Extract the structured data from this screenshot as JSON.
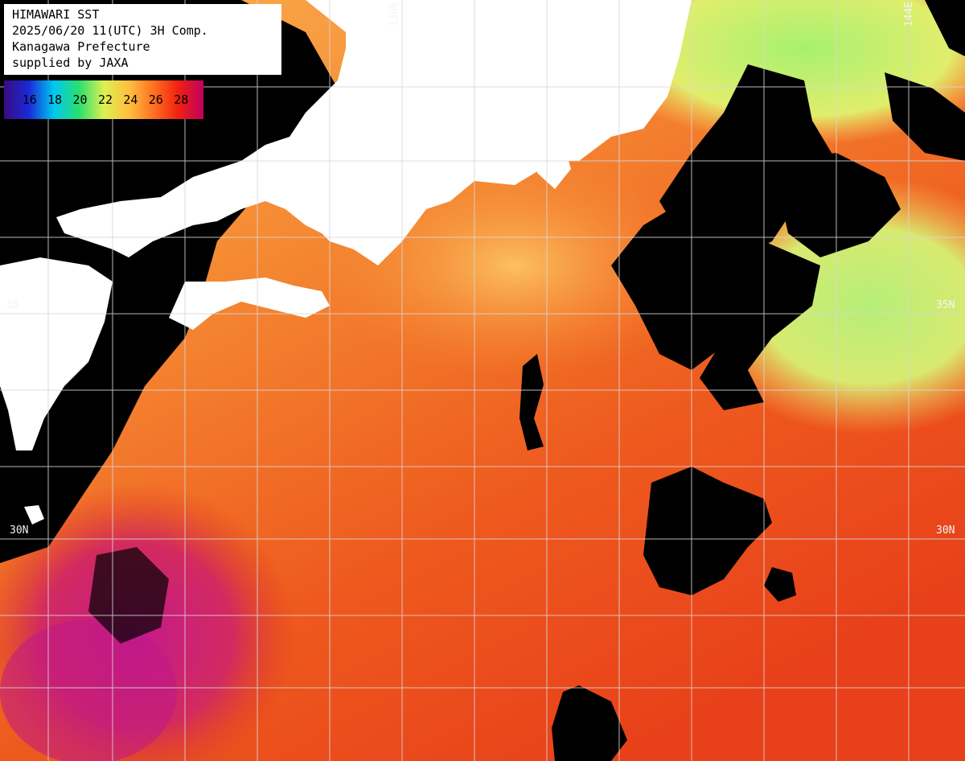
{
  "info": {
    "lines": [
      "HIMAWARI SST",
      "2025/06/20 11(UTC) 3H Comp.",
      "Kanagawa Prefecture",
      "supplied by JAXA"
    ]
  },
  "colorbar": {
    "ticks": [
      "16",
      "18",
      "20",
      "22",
      "24",
      "26",
      "28"
    ],
    "colors": [
      "#3a0a80",
      "#1a2ad8",
      "#00c8f0",
      "#28e070",
      "#dcf050",
      "#ffc040",
      "#ff7020",
      "#f02010",
      "#c00060"
    ]
  },
  "grid": {
    "lon_labels": [
      "136E",
      "144E"
    ],
    "lat_labels_left": [
      "35",
      "30N"
    ],
    "lat_labels_right": [
      "35N",
      "30N"
    ]
  },
  "palette": {
    "land": "#ffffff",
    "cloud": "#000000",
    "warm_sea": "#f04818",
    "mid_sea": "#fa8a30",
    "cool_sea": "#a8f070",
    "hot_sea": "#c01888",
    "gridline": "#d8d8d8"
  }
}
